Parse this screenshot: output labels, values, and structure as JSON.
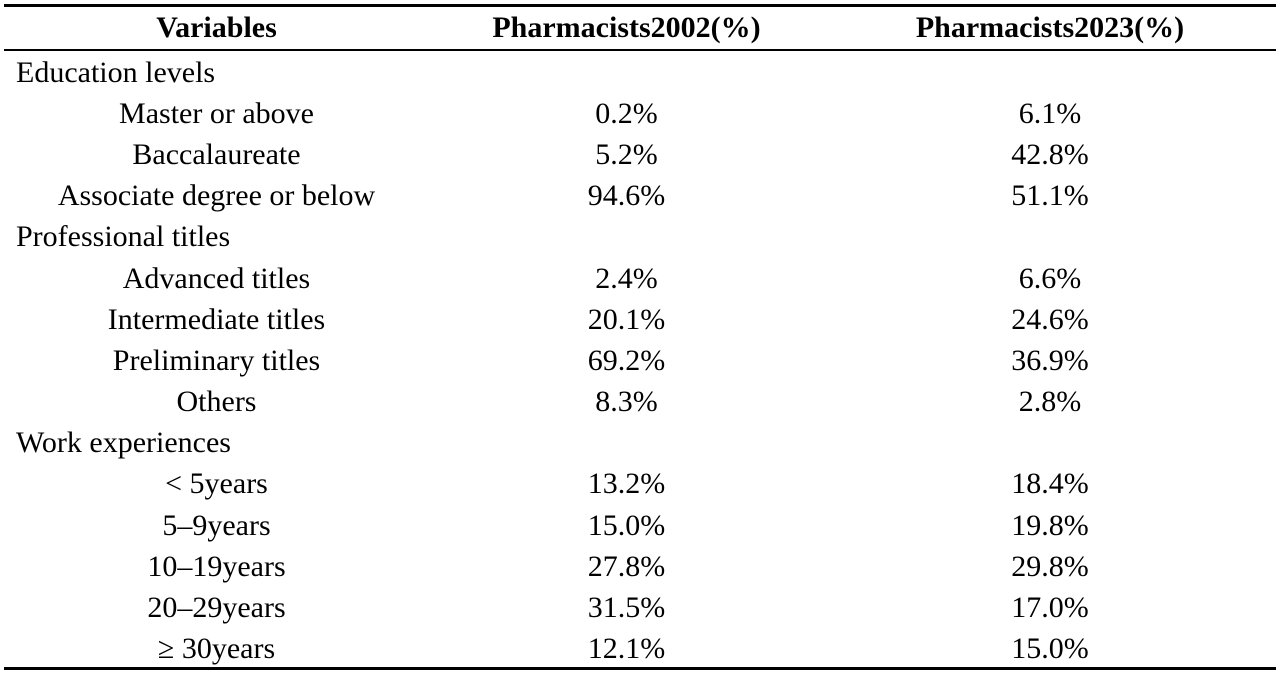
{
  "table": {
    "headers": [
      "Variables",
      "Pharmacists2002(%)",
      "Pharmacists2023(%)"
    ],
    "rows": [
      {
        "type": "group",
        "label": "Education levels",
        "v2002": "",
        "v2023": ""
      },
      {
        "type": "item",
        "label": "Master or above",
        "v2002": "0.2%",
        "v2023": "6.1%"
      },
      {
        "type": "item",
        "label": "Baccalaureate",
        "v2002": "5.2%",
        "v2023": "42.8%"
      },
      {
        "type": "item",
        "label": "Associate degree or below",
        "v2002": "94.6%",
        "v2023": "51.1%"
      },
      {
        "type": "group",
        "label": "Professional titles",
        "v2002": "",
        "v2023": ""
      },
      {
        "type": "item",
        "label": "Advanced titles",
        "v2002": "2.4%",
        "v2023": "6.6%"
      },
      {
        "type": "item",
        "label": "Intermediate titles",
        "v2002": "20.1%",
        "v2023": "24.6%"
      },
      {
        "type": "item",
        "label": "Preliminary titles",
        "v2002": "69.2%",
        "v2023": "36.9%"
      },
      {
        "type": "item",
        "label": "Others",
        "v2002": "8.3%",
        "v2023": "2.8%"
      },
      {
        "type": "group",
        "label": "Work experiences",
        "v2002": "",
        "v2023": ""
      },
      {
        "type": "item",
        "label": "< 5years",
        "v2002": "13.2%",
        "v2023": "18.4%"
      },
      {
        "type": "item",
        "label": "5–9years",
        "v2002": "15.0%",
        "v2023": "19.8%"
      },
      {
        "type": "item",
        "label": "10–19years",
        "v2002": "27.8%",
        "v2023": "29.8%"
      },
      {
        "type": "item",
        "label": "20–29years",
        "v2002": "31.5%",
        "v2023": "17.0%"
      },
      {
        "type": "item",
        "label": "≥ 30years",
        "v2002": "12.1%",
        "v2023": "15.0%"
      }
    ]
  }
}
